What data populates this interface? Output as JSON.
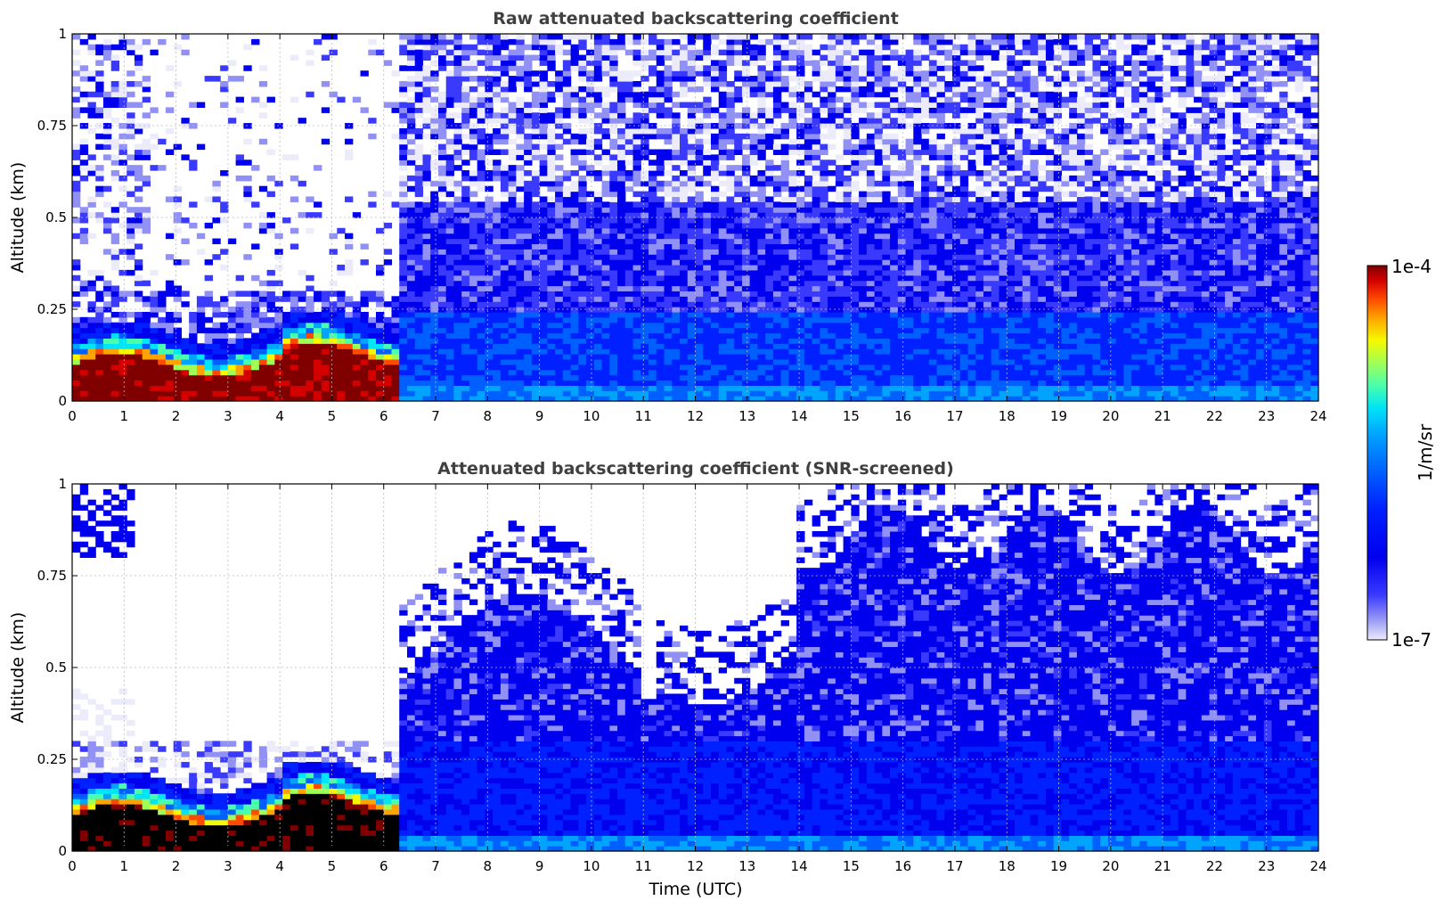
{
  "chart_data": [
    {
      "type": "heatmap",
      "title": "Raw attenuated backscattering coefficient",
      "ylabel": "Altitude (km)",
      "xlabel": "",
      "xlim": [
        0,
        24
      ],
      "ylim": [
        0,
        1
      ],
      "x_ticks": [
        "0",
        "1",
        "2",
        "3",
        "4",
        "5",
        "6",
        "7",
        "8",
        "9",
        "10",
        "11",
        "12",
        "13",
        "14",
        "15",
        "16",
        "17",
        "18",
        "19",
        "20",
        "21",
        "22",
        "23",
        "24"
      ],
      "y_ticks": [
        "0",
        "0.25",
        "0.5",
        "0.75",
        "1"
      ],
      "grid": true,
      "layers": [
        {
          "name": "aerosol layer",
          "x": [
            0,
            6.3
          ],
          "y": [
            0,
            0.13
          ],
          "level": "high"
        },
        {
          "name": "background noise",
          "x": [
            6.3,
            24
          ],
          "y": [
            0,
            1
          ],
          "level": "low"
        },
        {
          "name": "noisy sparse signal",
          "x": [
            0,
            6.3
          ],
          "y": [
            0.18,
            1
          ],
          "level": "sparse"
        }
      ]
    },
    {
      "type": "heatmap",
      "title": "Attenuated backscattering coefficient (SNR-screened)",
      "ylabel": "Altitude (km)",
      "xlabel": "Time (UTC)",
      "xlim": [
        0,
        24
      ],
      "ylim": [
        0,
        1
      ],
      "x_ticks": [
        "0",
        "1",
        "2",
        "3",
        "4",
        "5",
        "6",
        "7",
        "8",
        "9",
        "10",
        "11",
        "12",
        "13",
        "14",
        "15",
        "16",
        "17",
        "18",
        "19",
        "20",
        "21",
        "22",
        "23",
        "24"
      ],
      "y_ticks": [
        "0",
        "0.25",
        "0.5",
        "0.75",
        "1"
      ],
      "grid": true,
      "layers": [
        {
          "name": "aerosol layer",
          "x": [
            0,
            6.3
          ],
          "y": [
            0,
            0.13
          ],
          "level": "saturated"
        },
        {
          "name": "screened signal",
          "x": [
            6.3,
            24
          ],
          "y": [
            0,
            0.7
          ],
          "level": "low"
        },
        {
          "name": "cleared region",
          "x": [
            1.2,
            6.3
          ],
          "y": [
            0.3,
            1
          ],
          "level": "none"
        }
      ]
    }
  ],
  "colorbar": {
    "label": "1/m/sr",
    "max_label": "1e-4",
    "min_label": "1e-7",
    "colors": [
      "#800000",
      "#d40000",
      "#ff4a00",
      "#ffa300",
      "#f6f900",
      "#a0ff56",
      "#4affac",
      "#00e4f7",
      "#00a4ff",
      "#0060ff",
      "#0020ff",
      "#0000ee",
      "#3a3aff",
      "#9090f5",
      "#ebebfa"
    ]
  }
}
